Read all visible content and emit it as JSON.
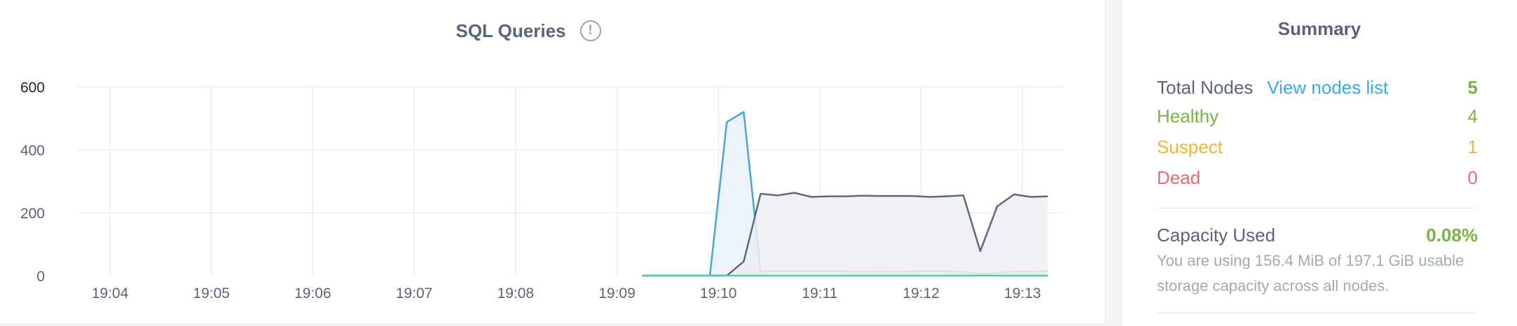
{
  "chart": {
    "title": "SQL Queries",
    "info_glyph": "!"
  },
  "chart_data": {
    "type": "area",
    "title": "SQL Queries",
    "xlabel": "",
    "ylabel": "",
    "ylim": [
      0,
      600
    ],
    "yticks": [
      "600",
      "400",
      "200",
      "0"
    ],
    "xticks": [
      "19:04",
      "19:05",
      "19:06",
      "19:07",
      "19:08",
      "19:09",
      "19:10",
      "19:11",
      "19:12",
      "19:13"
    ],
    "grid": true,
    "series": [
      {
        "color": "#4aa5d6",
        "fill": "#e9f2f8",
        "points": [
          [
            "19:09:15",
            0
          ],
          [
            "19:09:55",
            0
          ],
          [
            "19:10:05",
            488
          ],
          [
            "19:10:15",
            520
          ],
          [
            "19:10:25",
            14
          ],
          [
            "19:10:35",
            14
          ],
          [
            "19:10:45",
            14
          ],
          [
            "19:10:55",
            14
          ],
          [
            "19:11:05",
            14
          ],
          [
            "19:11:15",
            14
          ],
          [
            "19:11:25",
            12
          ],
          [
            "19:11:35",
            14
          ],
          [
            "19:11:45",
            12
          ],
          [
            "19:11:55",
            14
          ],
          [
            "19:12:05",
            14
          ],
          [
            "19:12:15",
            14
          ],
          [
            "19:12:25",
            12
          ],
          [
            "19:12:35",
            5
          ],
          [
            "19:12:45",
            8
          ],
          [
            "19:12:55",
            13
          ],
          [
            "19:13:05",
            13
          ],
          [
            "19:13:15",
            14
          ]
        ]
      },
      {
        "color": "#5b6880",
        "fill": "#eceef2",
        "points": [
          [
            "19:09:15",
            0
          ],
          [
            "19:10:05",
            0
          ],
          [
            "19:10:15",
            45
          ],
          [
            "19:10:25",
            260
          ],
          [
            "19:10:35",
            255
          ],
          [
            "19:10:45",
            263
          ],
          [
            "19:10:55",
            250
          ],
          [
            "19:11:05",
            252
          ],
          [
            "19:11:15",
            252
          ],
          [
            "19:11:25",
            254
          ],
          [
            "19:11:35",
            253
          ],
          [
            "19:11:45",
            253
          ],
          [
            "19:11:55",
            253
          ],
          [
            "19:12:05",
            250
          ],
          [
            "19:12:15",
            252
          ],
          [
            "19:12:25",
            255
          ],
          [
            "19:12:35",
            78
          ],
          [
            "19:12:45",
            220
          ],
          [
            "19:12:55",
            258
          ],
          [
            "19:13:05",
            250
          ],
          [
            "19:13:15",
            252
          ]
        ]
      },
      {
        "color": "#5cc7a4",
        "fill": "none",
        "points": [
          [
            "19:09:15",
            0
          ],
          [
            "19:13:15",
            0
          ]
        ]
      }
    ]
  },
  "summary": {
    "title": "Summary",
    "total_nodes_label": "Total Nodes",
    "view_nodes_link": "View nodes list",
    "total_nodes_value": "5",
    "healthy_label": "Healthy",
    "healthy_value": "4",
    "suspect_label": "Suspect",
    "suspect_value": "1",
    "dead_label": "Dead",
    "dead_value": "0",
    "capacity_label": "Capacity Used",
    "capacity_value": "0.08%",
    "capacity_desc": "You are using 156.4 MiB of 197.1 GiB usable storage capacity across all nodes."
  },
  "colors": {
    "heading": "#5a6478",
    "link": "#3aa9e8",
    "healthy": "#7ab342",
    "suspect": "#f0b43a",
    "dead": "#e66a76",
    "muted": "#a2a9b5",
    "text": "#5a6478"
  },
  "icons": {
    "info": "info-icon"
  }
}
